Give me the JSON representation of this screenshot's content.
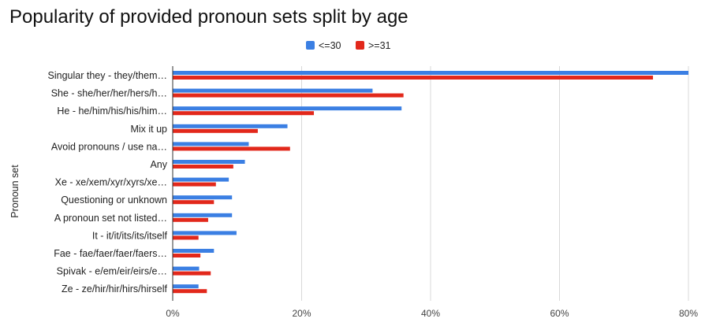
{
  "chart_data": {
    "type": "bar",
    "orientation": "horizontal",
    "title": "Popularity of provided pronoun sets split by age",
    "xlabel": "",
    "ylabel": "Pronoun set",
    "xlim": [
      0,
      0.8
    ],
    "x_ticks": [
      "0%",
      "20%",
      "40%",
      "60%",
      "80%"
    ],
    "x_tick_values": [
      0,
      0.2,
      0.4,
      0.6,
      0.8
    ],
    "grid": true,
    "legend_position": "top",
    "categories": [
      "Singular they - they/them…",
      "She - she/her/her/hers/h…",
      "He - he/him/his/his/him…",
      "Mix it up",
      "Avoid pronouns / use na…",
      "Any",
      "Xe - xe/xem/xyr/xyrs/xe…",
      "Questioning or unknown",
      "A pronoun set not listed…",
      "It - it/it/its/its/itself",
      "Fae - fae/faer/faer/faers…",
      "Spivak - e/em/eir/eirs/e…",
      "Ze - ze/hir/hir/hirs/hirself"
    ],
    "series": [
      {
        "name": "<=30",
        "color": "#3b7fe3",
        "values": [
          0.8,
          0.31,
          0.355,
          0.178,
          0.118,
          0.112,
          0.087,
          0.092,
          0.092,
          0.099,
          0.064,
          0.041,
          0.04
        ]
      },
      {
        "name": ">=31",
        "color": "#e2281b",
        "values": [
          0.745,
          0.358,
          0.219,
          0.132,
          0.182,
          0.094,
          0.067,
          0.064,
          0.055,
          0.04,
          0.043,
          0.059,
          0.053
        ]
      }
    ]
  }
}
